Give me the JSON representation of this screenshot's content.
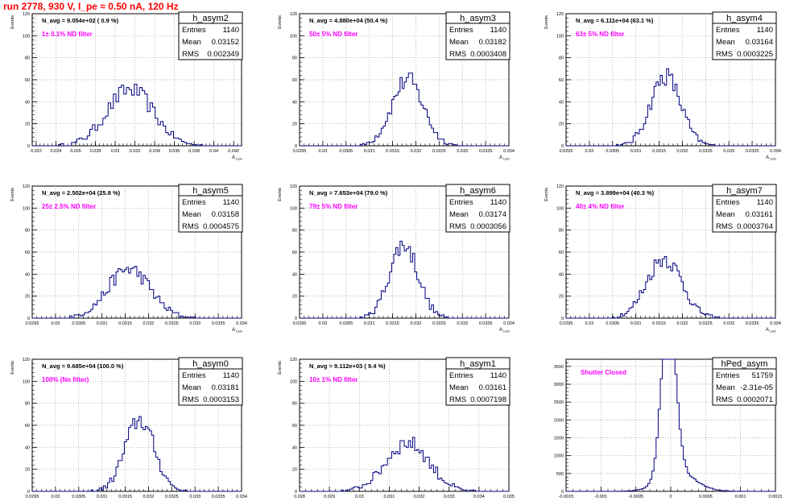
{
  "page": {
    "title": "run 2778,   930 V, I_pe ≈ 0.50 nA, 120 Hz"
  },
  "chart_data": [
    {
      "type": "histogram",
      "name": "h_asym2",
      "stats": [
        [
          "Entries",
          "1140"
        ],
        [
          "Mean",
          "0.03152"
        ],
        [
          "RMS",
          "0.002349"
        ]
      ],
      "navg": "N_avg = 9.054e+02 ( 0.9 %)",
      "filter": "1± 0.1% ND filter",
      "xlim": [
        0.0216,
        0.0428
      ],
      "xticks": [
        0.022,
        0.024,
        0.026,
        0.028,
        0.03,
        0.032,
        0.034,
        0.036,
        0.038,
        0.04,
        0.042
      ],
      "xticklabels": [
        "0.022",
        "0.024",
        "0.026",
        "0.028",
        "0.03",
        "0.032",
        "0.034",
        "0.036",
        "0.038",
        "0.04",
        "0.042"
      ],
      "ylim": [
        0,
        120
      ],
      "yticks": [
        0,
        20,
        40,
        60,
        80,
        100,
        120
      ],
      "ylabel": "Events",
      "xlabel": "A_LED",
      "mean": 0.03152,
      "rms": 0.002349,
      "entries": 1140,
      "nbins": 80
    },
    {
      "type": "histogram",
      "name": "h_asym3",
      "stats": [
        [
          "Entries",
          "1140"
        ],
        [
          "Mean",
          "0.03182"
        ],
        [
          "RMS",
          "0.0003408"
        ]
      ],
      "navg": "N_avg = 4.880e+04 (50.4 %)",
      "filter": "50± 5% ND filter",
      "xlim": [
        0.0295,
        0.034
      ],
      "xticks": [
        0.0295,
        0.03,
        0.0305,
        0.031,
        0.0315,
        0.032,
        0.0325,
        0.033,
        0.0335,
        0.034
      ],
      "xticklabels": [
        "0.0295",
        "0.03",
        "0.0305",
        "0.031",
        "0.0315",
        "0.032",
        "0.0325",
        "0.033",
        "0.0335",
        "0.034"
      ],
      "ylim": [
        0,
        120
      ],
      "yticks": [
        0,
        20,
        40,
        60,
        80,
        100,
        120
      ],
      "ylabel": "Events",
      "xlabel": "A_LED",
      "mean": 0.03182,
      "rms": 0.0003408,
      "entries": 1140,
      "nbins": 100
    },
    {
      "type": "histogram",
      "name": "h_asym4",
      "stats": [
        [
          "Entries",
          "1140"
        ],
        [
          "Mean",
          "0.03164"
        ],
        [
          "RMS",
          "0.0003225"
        ]
      ],
      "navg": "N_avg = 6.111e+04 (63.1 %)",
      "filter": "63± 5% ND filter",
      "xlim": [
        0.0295,
        0.034
      ],
      "xticks": [
        0.0295,
        0.03,
        0.0305,
        0.031,
        0.0315,
        0.032,
        0.0325,
        0.033,
        0.0335,
        0.034
      ],
      "xticklabels": [
        "0.0295",
        "0.03",
        "0.0305",
        "0.031",
        "0.0315",
        "0.032",
        "0.0325",
        "0.033",
        "0.0335",
        "0.034"
      ],
      "ylim": [
        0,
        120
      ],
      "yticks": [
        0,
        20,
        40,
        60,
        80,
        100,
        120
      ],
      "ylabel": "Events",
      "xlabel": "A_LED",
      "mean": 0.03164,
      "rms": 0.0003225,
      "entries": 1140,
      "nbins": 100
    },
    {
      "type": "histogram",
      "name": "h_asym5",
      "stats": [
        [
          "Entries",
          "1140"
        ],
        [
          "Mean",
          "0.03158"
        ],
        [
          "RMS",
          "0.0004575"
        ]
      ],
      "navg": "N_avg = 2.502e+04 (25.8 %)",
      "filter": "25± 2.5% ND filter",
      "xlim": [
        0.0295,
        0.034
      ],
      "xticks": [
        0.0295,
        0.03,
        0.0305,
        0.031,
        0.0315,
        0.032,
        0.0325,
        0.033,
        0.0335,
        0.034
      ],
      "xticklabels": [
        "0.0295",
        "0.03",
        "0.0305",
        "0.031",
        "0.0315",
        "0.032",
        "0.0325",
        "0.033",
        "0.0335",
        "0.034"
      ],
      "ylim": [
        0,
        120
      ],
      "yticks": [
        0,
        20,
        40,
        60,
        80,
        100,
        120
      ],
      "ylabel": "Events",
      "xlabel": "A_LED",
      "mean": 0.03158,
      "rms": 0.0004575,
      "entries": 1140,
      "nbins": 100
    },
    {
      "type": "histogram",
      "name": "h_asym6",
      "stats": [
        [
          "Entries",
          "1140"
        ],
        [
          "Mean",
          "0.03174"
        ],
        [
          "RMS",
          "0.0003056"
        ]
      ],
      "navg": "N_avg = 7.653e+04 (79.0 %)",
      "filter": "79± 5% ND filter",
      "xlim": [
        0.0295,
        0.034
      ],
      "xticks": [
        0.0295,
        0.03,
        0.0305,
        0.031,
        0.0315,
        0.032,
        0.0325,
        0.033,
        0.0335,
        0.034
      ],
      "xticklabels": [
        "0.0295",
        "0.03",
        "0.0305",
        "0.031",
        "0.0315",
        "0.032",
        "0.0325",
        "0.033",
        "0.0335",
        "0.034"
      ],
      "ylim": [
        0,
        120
      ],
      "yticks": [
        0,
        20,
        40,
        60,
        80,
        100,
        120
      ],
      "ylabel": "Events",
      "xlabel": "A_LED",
      "mean": 0.03174,
      "rms": 0.0003056,
      "entries": 1140,
      "nbins": 100
    },
    {
      "type": "histogram",
      "name": "h_asym7",
      "stats": [
        [
          "Entries",
          "1140"
        ],
        [
          "Mean",
          "0.03161"
        ],
        [
          "RMS",
          "0.0003764"
        ]
      ],
      "navg": "N_avg = 3.899e+04 (40.3 %)",
      "filter": "40± 4% ND filter",
      "xlim": [
        0.0295,
        0.034
      ],
      "xticks": [
        0.0295,
        0.03,
        0.0305,
        0.031,
        0.0315,
        0.032,
        0.0325,
        0.033,
        0.0335,
        0.034
      ],
      "xticklabels": [
        "0.0295",
        "0.03",
        "0.0305",
        "0.031",
        "0.0315",
        "0.032",
        "0.0325",
        "0.033",
        "0.0335",
        "0.034"
      ],
      "ylim": [
        0,
        120
      ],
      "yticks": [
        0,
        20,
        40,
        60,
        80,
        100,
        120
      ],
      "ylabel": "Events",
      "xlabel": "A_LED",
      "mean": 0.03161,
      "rms": 0.0003764,
      "entries": 1140,
      "nbins": 100
    },
    {
      "type": "histogram",
      "name": "h_asym0",
      "stats": [
        [
          "Entries",
          "1140"
        ],
        [
          "Mean",
          "0.03181"
        ],
        [
          "RMS",
          "0.0003153"
        ]
      ],
      "navg": "N_avg = 9.685e+04 (100.0 %)",
      "filter": "100% (No filter)",
      "xlim": [
        0.0295,
        0.034
      ],
      "xticks": [
        0.0295,
        0.03,
        0.0305,
        0.031,
        0.0315,
        0.032,
        0.0325,
        0.033,
        0.0335,
        0.034
      ],
      "xticklabels": [
        "0.0295",
        "0.03",
        "0.0305",
        "0.031",
        "0.0315",
        "0.032",
        "0.0325",
        "0.033",
        "0.0335",
        "0.034"
      ],
      "ylim": [
        0,
        120
      ],
      "yticks": [
        0,
        20,
        40,
        60,
        80,
        100,
        120
      ],
      "ylabel": "Events",
      "xlabel": "A_LED",
      "mean": 0.03181,
      "rms": 0.0003153,
      "entries": 1140,
      "nbins": 100
    },
    {
      "type": "histogram",
      "name": "h_asym1",
      "stats": [
        [
          "Entries",
          "1140"
        ],
        [
          "Mean",
          "0.03161"
        ],
        [
          "RMS",
          "0.0007198"
        ]
      ],
      "navg": "N_avg = 9.112e+03 ( 9.4 %)",
      "filter": "10± 1% ND filter",
      "xlim": [
        0.028,
        0.035
      ],
      "xticks": [
        0.028,
        0.029,
        0.03,
        0.031,
        0.032,
        0.033,
        0.034,
        0.035
      ],
      "xticklabels": [
        "0.028",
        "0.029",
        "0.03",
        "0.031",
        "0.032",
        "0.033",
        "0.034",
        "0.035"
      ],
      "ylim": [
        0,
        120
      ],
      "yticks": [
        0,
        20,
        40,
        60,
        80,
        100,
        120
      ],
      "ylabel": "Events",
      "xlabel": "A_LED",
      "mean": 0.03161,
      "rms": 0.0007198,
      "entries": 1140,
      "nbins": 100
    },
    {
      "type": "histogram",
      "name": "hPed_asym",
      "stats": [
        [
          "Entries",
          "51759"
        ],
        [
          "Mean",
          "-2.31e-05"
        ],
        [
          "RMS",
          "0.0002071"
        ]
      ],
      "navg": "",
      "filter": "Shutter Closed",
      "xlim": [
        -0.0015,
        0.0015
      ],
      "xticks": [
        -0.0015,
        -0.001,
        -0.0005,
        0,
        0.0005,
        0.001,
        0.0015
      ],
      "xticklabels": [
        "-0.0015",
        "-0.001",
        "-0.0005",
        "0",
        "0.0005",
        "0.001",
        "0.0015"
      ],
      "ylim": [
        0,
        3700
      ],
      "yticks": [
        0,
        500,
        1000,
        1500,
        2000,
        2500,
        3000,
        3500
      ],
      "ylabel": "",
      "xlabel": "",
      "mean": -2.31e-05,
      "rms": 0.0002071,
      "entries": 51759,
      "nbins": 100
    }
  ],
  "colors": {
    "title": "#ff0000",
    "annotation": "#ff00ff",
    "histogram": "#00007f",
    "grid": "#9a9a9a"
  }
}
